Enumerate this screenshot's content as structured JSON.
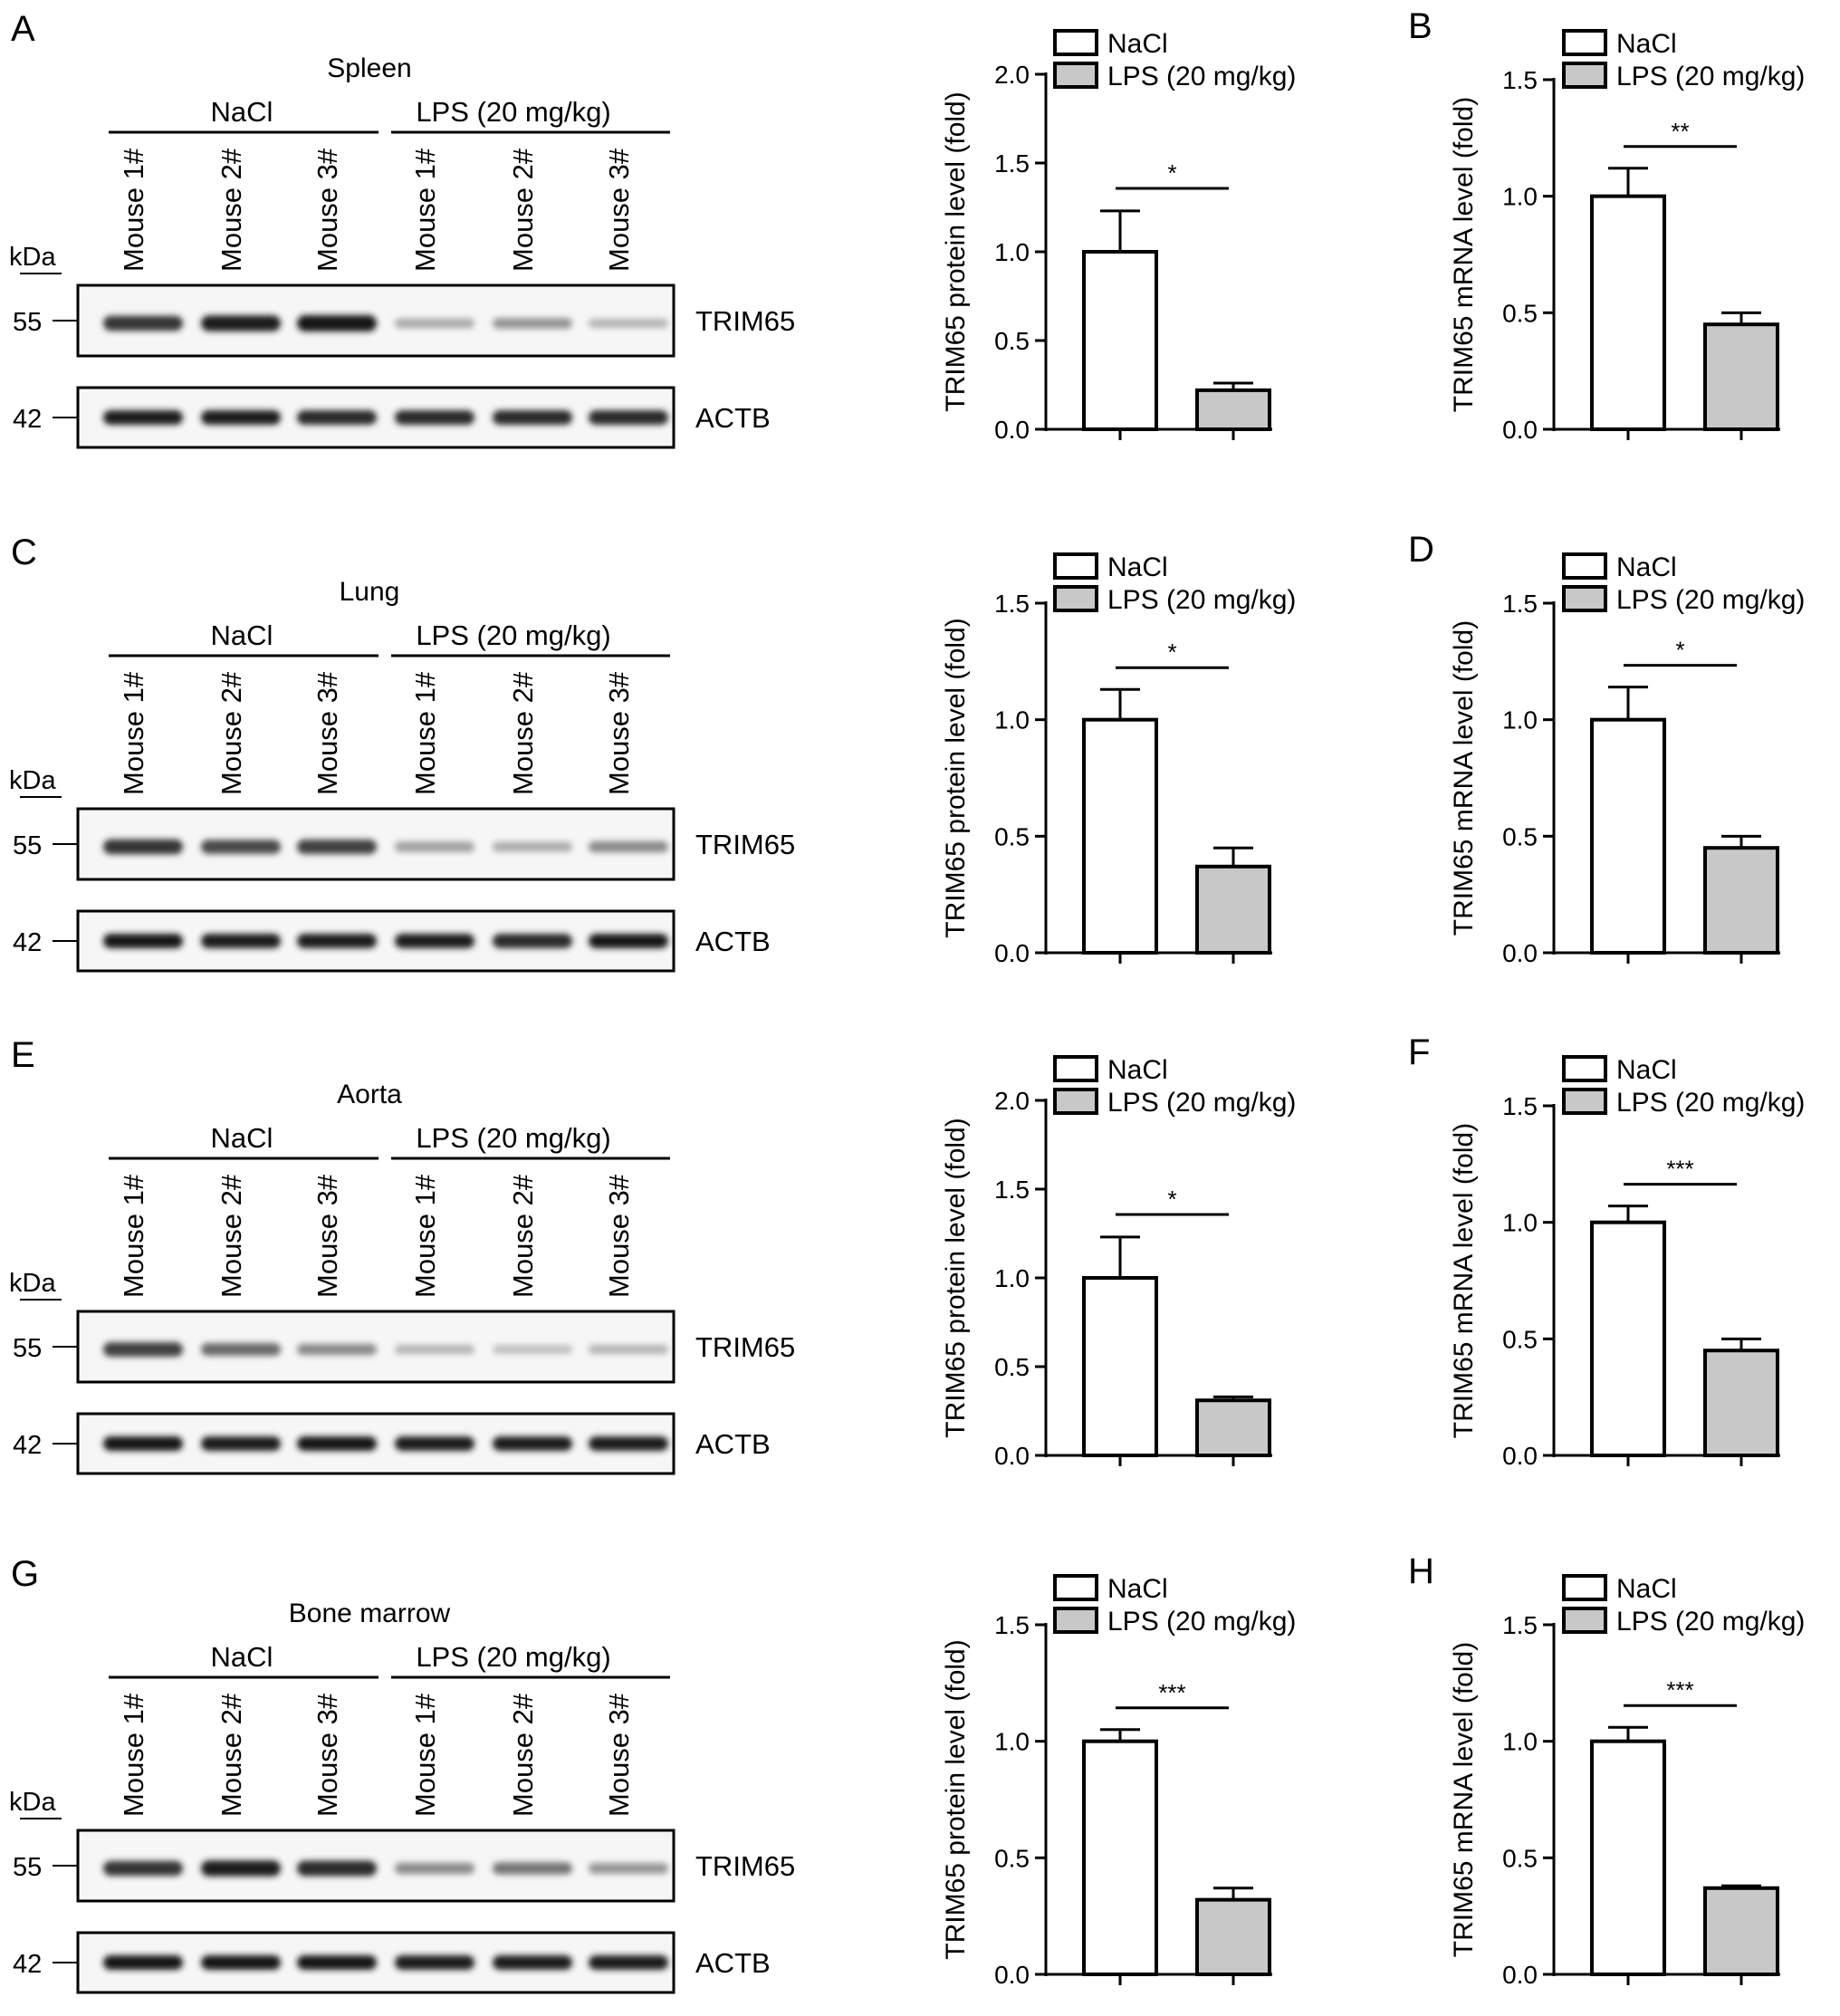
{
  "legend": {
    "group1": "NaCl",
    "group2": "LPS (20 mg/kg)"
  },
  "colors": {
    "nacl_fill": "#ffffff",
    "lps_fill": "#c8c8c8",
    "stroke": "#000000"
  },
  "rows": [
    {
      "blot": {
        "panel": "A",
        "tissue": "Spleen",
        "group_labels": [
          "NaCl",
          "LPS (20 mg/kg)"
        ],
        "lanes": [
          "Mouse 1#",
          "Mouse 2#",
          "Mouse 3#",
          "Mouse 1#",
          "Mouse 2#",
          "Mouse 3#"
        ],
        "kda_label": "kDa",
        "bands": [
          {
            "name": "TRIM65",
            "marker": "55",
            "intensities": [
              0.85,
              0.95,
              1.0,
              0.3,
              0.4,
              0.25
            ]
          },
          {
            "name": "ACTB",
            "marker": "42",
            "intensities": [
              0.95,
              0.95,
              0.9,
              0.9,
              0.9,
              0.9
            ]
          }
        ]
      },
      "charts": [
        {
          "panel": "",
          "type": "bar",
          "ylabel": "TRIM65 protein level (fold)",
          "categories": [
            "NaCl",
            "LPS (20 mg/kg)"
          ],
          "values": [
            1.0,
            0.22
          ],
          "errors": [
            0.23,
            0.04
          ],
          "ylim": [
            0,
            2.0
          ],
          "yticks": [
            "0.0",
            "0.5",
            "1.0",
            "1.5",
            "2.0"
          ],
          "significance": "*"
        },
        {
          "panel": "B",
          "type": "bar",
          "ylabel": "TRIM65 mRNA level (fold)",
          "categories": [
            "NaCl",
            "LPS (20 mg/kg)"
          ],
          "values": [
            1.0,
            0.45
          ],
          "errors": [
            0.12,
            0.05
          ],
          "ylim": [
            0,
            1.5
          ],
          "yticks": [
            "0.0",
            "0.5",
            "1.0",
            "1.5"
          ],
          "significance": "**"
        }
      ]
    },
    {
      "blot": {
        "panel": "C",
        "tissue": "Lung",
        "group_labels": [
          "NaCl",
          "LPS (20 mg/kg)"
        ],
        "lanes": [
          "Mouse 1#",
          "Mouse 2#",
          "Mouse 3#",
          "Mouse 1#",
          "Mouse 2#",
          "Mouse 3#"
        ],
        "kda_label": "kDa",
        "bands": [
          {
            "name": "TRIM65",
            "marker": "55",
            "intensities": [
              0.85,
              0.75,
              0.8,
              0.35,
              0.3,
              0.45
            ]
          },
          {
            "name": "ACTB",
            "marker": "42",
            "intensities": [
              1.0,
              0.95,
              0.95,
              0.95,
              0.9,
              1.0
            ]
          }
        ]
      },
      "charts": [
        {
          "panel": "",
          "type": "bar",
          "ylabel": "TRIM65 protein level (fold)",
          "categories": [
            "NaCl",
            "LPS (20 mg/kg)"
          ],
          "values": [
            1.0,
            0.37
          ],
          "errors": [
            0.13,
            0.08
          ],
          "ylim": [
            0,
            1.5
          ],
          "yticks": [
            "0.0",
            "0.5",
            "1.0",
            "1.5"
          ],
          "significance": "*"
        },
        {
          "panel": "D",
          "type": "bar",
          "ylabel": "TRIM65 mRNA level (fold)",
          "categories": [
            "NaCl",
            "LPS (20 mg/kg)"
          ],
          "values": [
            1.0,
            0.45
          ],
          "errors": [
            0.14,
            0.05
          ],
          "ylim": [
            0,
            1.5
          ],
          "yticks": [
            "0.0",
            "0.5",
            "1.0",
            "1.5"
          ],
          "significance": "*"
        }
      ]
    },
    {
      "blot": {
        "panel": "E",
        "tissue": "Aorta",
        "group_labels": [
          "NaCl",
          "LPS (20 mg/kg)"
        ],
        "lanes": [
          "Mouse 1#",
          "Mouse 2#",
          "Mouse 3#",
          "Mouse 1#",
          "Mouse 2#",
          "Mouse 3#"
        ],
        "kda_label": "kDa",
        "bands": [
          {
            "name": "TRIM65",
            "marker": "55",
            "intensities": [
              0.8,
              0.6,
              0.45,
              0.25,
              0.2,
              0.25
            ]
          },
          {
            "name": "ACTB",
            "marker": "42",
            "intensities": [
              1.0,
              0.95,
              1.0,
              0.95,
              0.95,
              0.95
            ]
          }
        ]
      },
      "charts": [
        {
          "panel": "",
          "type": "bar",
          "ylabel": "TRIM65 protein level (fold)",
          "categories": [
            "NaCl",
            "LPS (20 mg/kg)"
          ],
          "values": [
            1.0,
            0.31
          ],
          "errors": [
            0.23,
            0.02
          ],
          "ylim": [
            0,
            2.0
          ],
          "yticks": [
            "0.0",
            "0.5",
            "1.0",
            "1.5",
            "2.0"
          ],
          "significance": "*"
        },
        {
          "panel": "F",
          "type": "bar",
          "ylabel": "TRIM65 mRNA level (fold)",
          "categories": [
            "NaCl",
            "LPS (20 mg/kg)"
          ],
          "values": [
            1.0,
            0.45
          ],
          "errors": [
            0.07,
            0.05
          ],
          "ylim": [
            0,
            1.5
          ],
          "yticks": [
            "0.0",
            "0.5",
            "1.0",
            "1.5"
          ],
          "significance": "***"
        }
      ]
    },
    {
      "blot": {
        "panel": "G",
        "tissue": "Bone marrow",
        "group_labels": [
          "NaCl",
          "LPS (20 mg/kg)"
        ],
        "lanes": [
          "Mouse 1#",
          "Mouse 2#",
          "Mouse 3#",
          "Mouse 1#",
          "Mouse 2#",
          "Mouse 3#"
        ],
        "kda_label": "kDa",
        "bands": [
          {
            "name": "TRIM65",
            "marker": "55",
            "intensities": [
              0.85,
              0.95,
              0.9,
              0.45,
              0.55,
              0.4
            ]
          },
          {
            "name": "ACTB",
            "marker": "42",
            "intensities": [
              1.0,
              1.0,
              1.0,
              0.95,
              0.95,
              0.95
            ]
          }
        ]
      },
      "charts": [
        {
          "panel": "",
          "type": "bar",
          "ylabel": "TRIM65 protein level (fold)",
          "categories": [
            "NaCl",
            "LPS (20 mg/kg)"
          ],
          "values": [
            1.0,
            0.32
          ],
          "errors": [
            0.05,
            0.05
          ],
          "ylim": [
            0,
            1.5
          ],
          "yticks": [
            "0.0",
            "0.5",
            "1.0",
            "1.5"
          ],
          "significance": "***"
        },
        {
          "panel": "H",
          "type": "bar",
          "ylabel": "TRIM65 mRNA level (fold)",
          "categories": [
            "NaCl",
            "LPS (20 mg/kg)"
          ],
          "values": [
            1.0,
            0.37
          ],
          "errors": [
            0.06,
            0.01
          ],
          "ylim": [
            0,
            1.5
          ],
          "yticks": [
            "0.0",
            "0.5",
            "1.0",
            "1.5"
          ],
          "significance": "***"
        }
      ]
    }
  ],
  "chart_data": [
    {
      "type": "bar",
      "ylabel": "TRIM65 protein level (fold)",
      "categories": [
        "NaCl",
        "LPS (20 mg/kg)"
      ],
      "values": [
        1.0,
        0.22
      ],
      "errors": [
        0.23,
        0.04
      ],
      "ylim": [
        0,
        2.0
      ],
      "annotation": "*"
    },
    {
      "type": "bar",
      "ylabel": "TRIM65 mRNA level (fold)",
      "categories": [
        "NaCl",
        "LPS (20 mg/kg)"
      ],
      "values": [
        1.0,
        0.45
      ],
      "errors": [
        0.12,
        0.05
      ],
      "ylim": [
        0,
        1.5
      ],
      "annotation": "**"
    },
    {
      "type": "bar",
      "ylabel": "TRIM65 protein level (fold)",
      "categories": [
        "NaCl",
        "LPS (20 mg/kg)"
      ],
      "values": [
        1.0,
        0.37
      ],
      "errors": [
        0.13,
        0.08
      ],
      "ylim": [
        0,
        1.5
      ],
      "annotation": "*"
    },
    {
      "type": "bar",
      "ylabel": "TRIM65 mRNA level (fold)",
      "categories": [
        "NaCl",
        "LPS (20 mg/kg)"
      ],
      "values": [
        1.0,
        0.45
      ],
      "errors": [
        0.14,
        0.05
      ],
      "ylim": [
        0,
        1.5
      ],
      "annotation": "*"
    },
    {
      "type": "bar",
      "ylabel": "TRIM65 protein level (fold)",
      "categories": [
        "NaCl",
        "LPS (20 mg/kg)"
      ],
      "values": [
        1.0,
        0.31
      ],
      "errors": [
        0.23,
        0.02
      ],
      "ylim": [
        0,
        2.0
      ],
      "annotation": "*"
    },
    {
      "type": "bar",
      "ylabel": "TRIM65 mRNA level (fold)",
      "categories": [
        "NaCl",
        "LPS (20 mg/kg)"
      ],
      "values": [
        1.0,
        0.45
      ],
      "errors": [
        0.07,
        0.05
      ],
      "ylim": [
        0,
        1.5
      ],
      "annotation": "***"
    },
    {
      "type": "bar",
      "ylabel": "TRIM65 protein level (fold)",
      "categories": [
        "NaCl",
        "LPS (20 mg/kg)"
      ],
      "values": [
        1.0,
        0.32
      ],
      "errors": [
        0.05,
        0.05
      ],
      "ylim": [
        0,
        1.5
      ],
      "annotation": "***"
    },
    {
      "type": "bar",
      "ylabel": "TRIM65 mRNA level (fold)",
      "categories": [
        "NaCl",
        "LPS (20 mg/kg)"
      ],
      "values": [
        1.0,
        0.37
      ],
      "errors": [
        0.06,
        0.01
      ],
      "ylim": [
        0,
        1.5
      ],
      "annotation": "***"
    }
  ]
}
